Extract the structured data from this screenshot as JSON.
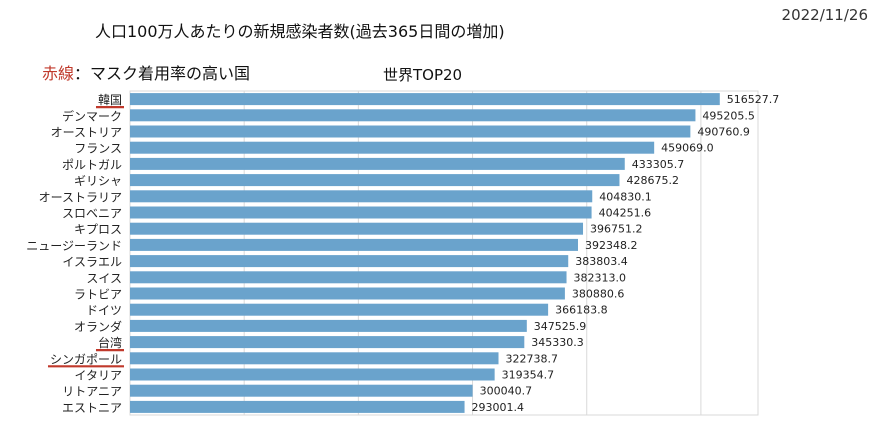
{
  "header": {
    "date": "2022/11/26",
    "title": "人口100万人あたりの新規感染者数(過去365日間の増加)",
    "legend_red_word": "赤線",
    "legend_rest": "：マスク着用率の高い国"
  },
  "chart_data": {
    "type": "bar",
    "orientation": "horizontal",
    "title": "世界TOP20",
    "categories": [
      "韓国",
      "デンマーク",
      "オーストリア",
      "フランス",
      "ポルトガル",
      "ギリシャ",
      "オーストラリア",
      "スロベニア",
      "キプロス",
      "ニュージーランド",
      "イスラエル",
      "スイス",
      "ラトビア",
      "ドイツ",
      "オランダ",
      "台湾",
      "シンガポール",
      "イタリア",
      "リトアニア",
      "エストニア"
    ],
    "values": [
      516527.7,
      495205.5,
      490760.9,
      459069.0,
      433305.7,
      428675.2,
      404830.1,
      404251.6,
      396751.2,
      392348.2,
      383803.4,
      382313.0,
      380880.6,
      366183.8,
      347525.9,
      345330.3,
      322738.7,
      319354.7,
      300040.7,
      293001.4
    ],
    "value_labels": [
      "516527.7",
      "495205.5",
      "490760.9",
      "459069.0",
      "433305.7",
      "428675.2",
      "404830.1",
      "404251.6",
      "396751.2",
      "392348.2",
      "383803.4",
      "382313.0",
      "380880.6",
      "366183.8",
      "347525.9",
      "345330.3",
      "322738.7",
      "319354.7",
      "300040.7",
      "293001.4"
    ],
    "xlim": [
      0,
      550000
    ],
    "grid": true,
    "bar_color": "#6aa3cc",
    "highlight_color": "#c0392b",
    "highlighted_categories": [
      "韓国",
      "台湾",
      "シンガポール"
    ]
  }
}
